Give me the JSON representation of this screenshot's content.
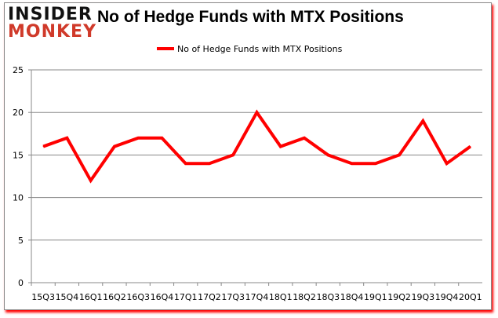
{
  "logo": {
    "line1": "INSIDER",
    "line2": "MONKEY"
  },
  "chart_data": {
    "type": "line",
    "title": "No of Hedge Funds with MTX Positions",
    "categories": [
      "15Q3",
      "15Q4",
      "16Q1",
      "16Q2",
      "16Q3",
      "16Q4",
      "17Q1",
      "17Q2",
      "17Q3",
      "17Q4",
      "18Q1",
      "18Q2",
      "18Q3",
      "18Q4",
      "19Q1",
      "19Q2",
      "19Q3",
      "19Q4",
      "20Q1"
    ],
    "series": [
      {
        "name": "No of Hedge Funds with MTX Positions",
        "color": "#ff0000",
        "values": [
          16,
          17,
          12,
          16,
          17,
          17,
          14,
          14,
          15,
          20,
          16,
          17,
          15,
          14,
          14,
          15,
          19,
          14,
          16
        ]
      }
    ],
    "ylim": [
      0,
      25
    ],
    "yticks": [
      0,
      5,
      10,
      15,
      20,
      25
    ],
    "grid": true,
    "legend": "top"
  }
}
